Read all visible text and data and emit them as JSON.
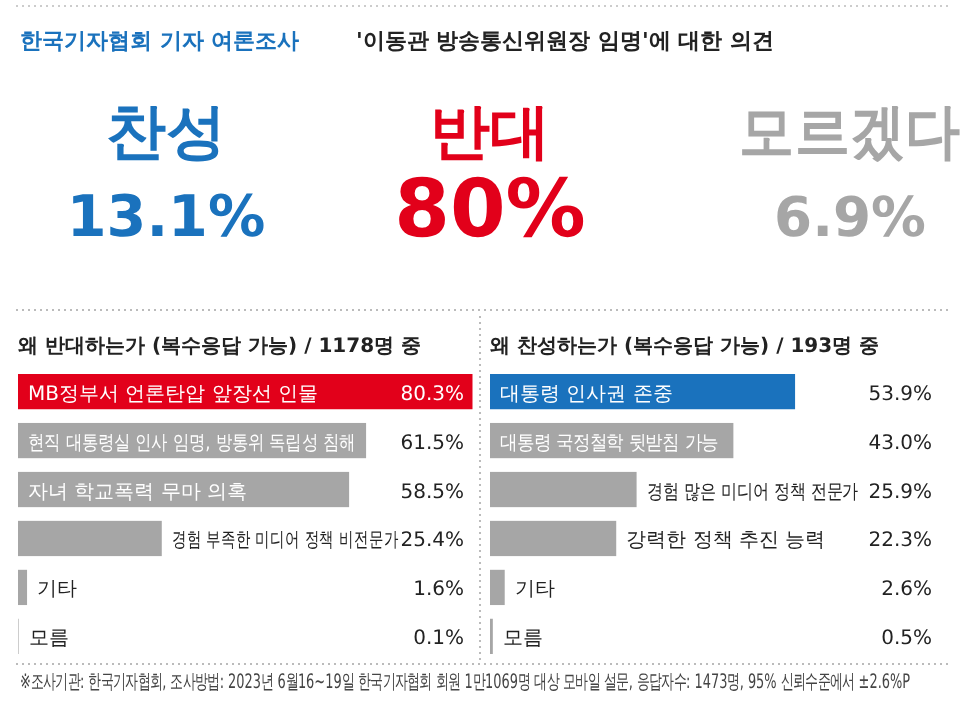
{
  "chart_data": [
    {
      "type": "other",
      "title": "한국기자협회 기자 여론조사",
      "subtitle": "'이동관 방송통신위원장 임명'에 대한 의견",
      "categories": [
        "찬성",
        "반대",
        "모르겠다"
      ],
      "values": [
        13.1,
        80,
        6.9
      ],
      "value_labels": [
        "13.1%",
        "80%",
        "6.9%"
      ],
      "colors": [
        "#1a72bd",
        "#e2001a",
        "#a6a6a6"
      ],
      "annotations": [
        "※조사기관: 한국기자협회, 조사방법: 2023년 6월16~19일 한국기자협회 회원 1만1069명 대상 모바일 설문, 응답자수: 1473명, 95% 신뢰수준에서 ±2.6%P"
      ]
    },
    {
      "type": "bar",
      "orientation": "horizontal",
      "title": "왜 반대하는가 (복수응답 가능) / 1178명 중",
      "categories": [
        "MB정부서 언론탄압 앞장선 인물",
        "현직 대통령실 인사 임명, 방통위 독립성 침해",
        "자녀 학교폭력 무마 의혹",
        "경험 부족한 미디어 정책 비전문가",
        "기타",
        "모름"
      ],
      "values": [
        80.3,
        61.5,
        58.5,
        25.4,
        1.6,
        0.1
      ],
      "value_labels": [
        "80.3%",
        "61.5%",
        "58.5%",
        "25.4%",
        "1.6%",
        "0.1%"
      ],
      "colors": [
        "#e2001a",
        "#a6a6a6",
        "#a6a6a6",
        "#a6a6a6",
        "#a6a6a6",
        "#a6a6a6"
      ]
    },
    {
      "type": "bar",
      "orientation": "horizontal",
      "title": "왜 찬성하는가 (복수응답 가능) / 193명 중",
      "categories": [
        "대통령 인사권 존중",
        "대통령 국정철학 뒷받침 가능",
        "경험 많은 미디어 정책 전문가",
        "강력한 정책 추진 능력",
        "기타",
        "모름"
      ],
      "values": [
        53.9,
        43.0,
        25.9,
        22.3,
        2.6,
        0.5
      ],
      "value_labels": [
        "53.9%",
        "43.0%",
        "25.9%",
        "22.3%",
        "2.6%",
        "0.5%"
      ],
      "colors": [
        "#1a72bd",
        "#a6a6a6",
        "#a6a6a6",
        "#a6a6a6",
        "#a6a6a6",
        "#a6a6a6"
      ]
    }
  ]
}
